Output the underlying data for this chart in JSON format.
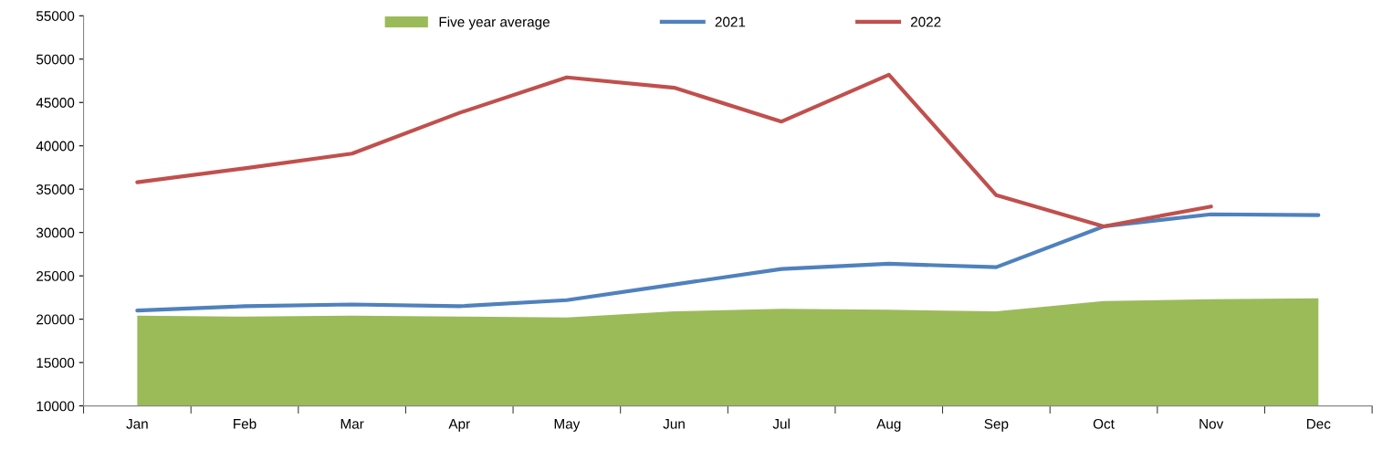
{
  "chart_data": {
    "type": "line",
    "categories": [
      "Jan",
      "Feb",
      "Mar",
      "Apr",
      "May",
      "Jun",
      "Jul",
      "Aug",
      "Sep",
      "Oct",
      "Nov",
      "Dec"
    ],
    "series": [
      {
        "name": "Five year average",
        "type": "area",
        "color": "#9bbb59",
        "values": [
          20400,
          20300,
          20400,
          20300,
          20200,
          20900,
          21200,
          21100,
          20900,
          22100,
          22300,
          22400
        ]
      },
      {
        "name": "2021",
        "color": "#4f81bd",
        "values": [
          21000,
          21500,
          21700,
          21500,
          22200,
          24000,
          25800,
          26400,
          26000,
          30700,
          32100,
          32000
        ]
      },
      {
        "name": "2022",
        "color": "#c0504d",
        "values": [
          35800,
          37400,
          39100,
          43800,
          47900,
          46700,
          42800,
          48200,
          34300,
          30700,
          33000,
          null
        ]
      }
    ],
    "ylim": [
      10000,
      55000
    ],
    "yticks": [
      10000,
      15000,
      20000,
      25000,
      30000,
      35000,
      40000,
      45000,
      50000,
      55000
    ],
    "grid": false,
    "legend": "top"
  }
}
